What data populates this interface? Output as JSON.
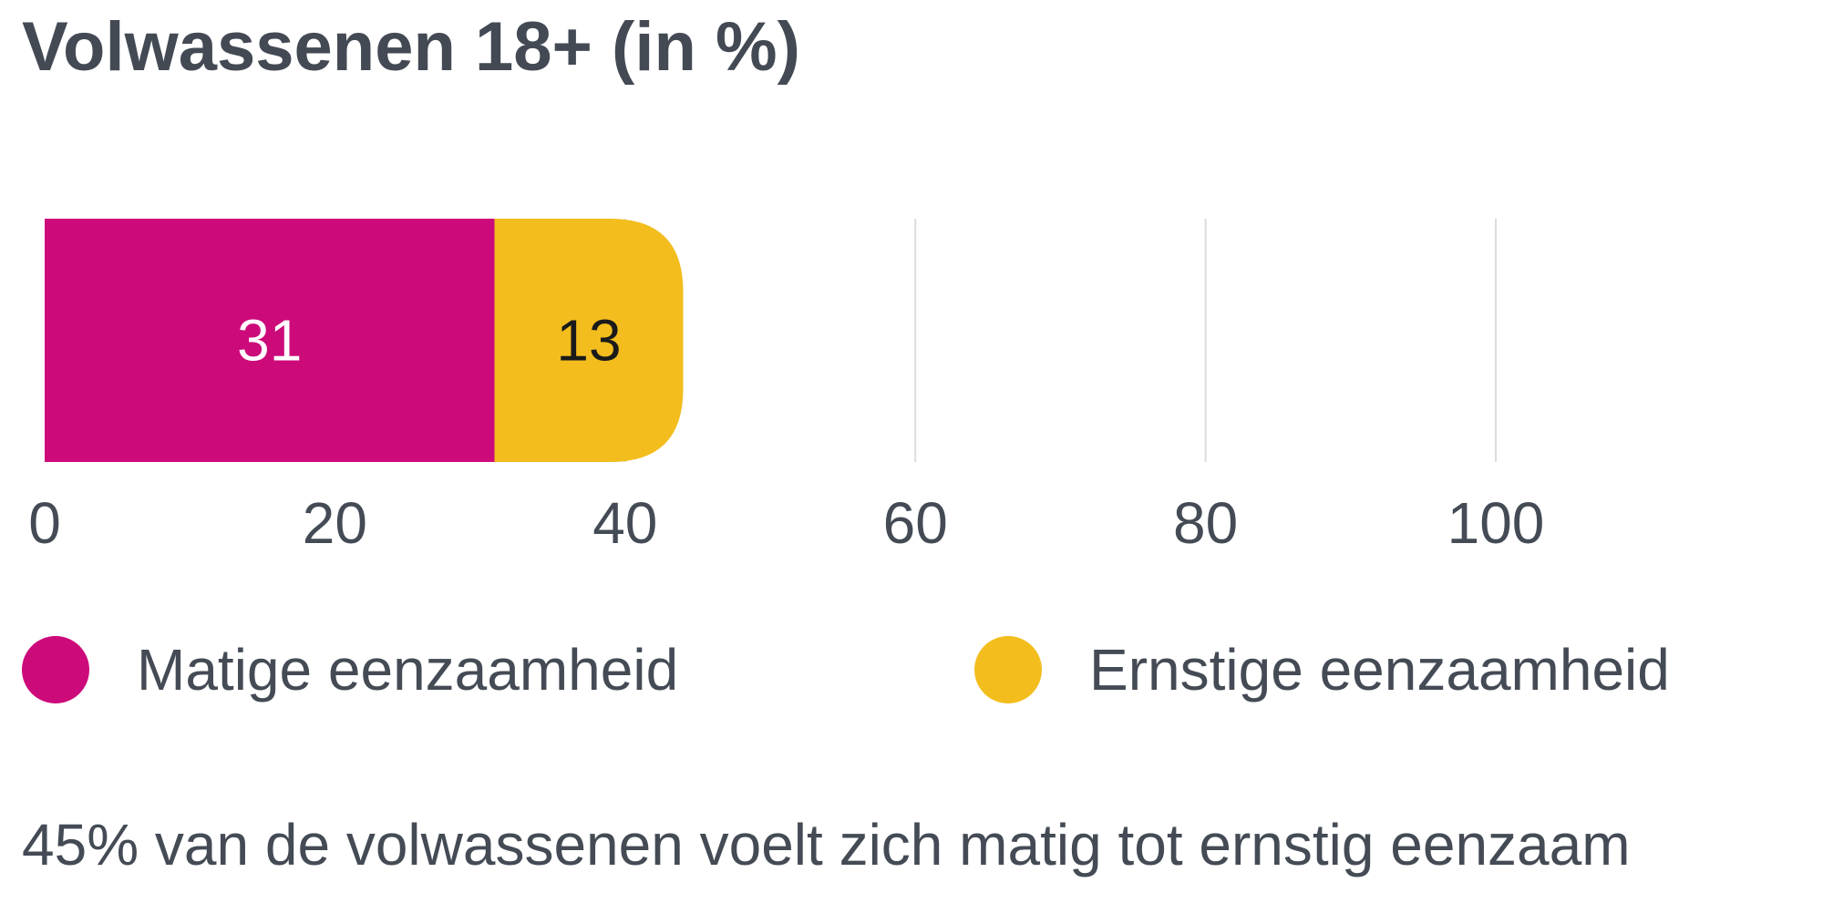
{
  "chart_data": {
    "type": "bar",
    "orientation": "horizontal",
    "stacked": true,
    "title": "Volwassenen 18+ (in %)",
    "categories": [
      "Volwassenen 18+"
    ],
    "series": [
      {
        "name": "Matige eenzaamheid",
        "values": [
          31
        ],
        "color": "#cc0a7a",
        "label_color": "#ffffff"
      },
      {
        "name": "Ernstige eenzaamheid",
        "values": [
          13
        ],
        "color": "#f2bd1d",
        "label_color": "#1a1a1a"
      }
    ],
    "xlim": [
      0,
      100
    ],
    "xticks": [
      0,
      20,
      40,
      60,
      80,
      100
    ],
    "grid": true,
    "legend_position": "bottom"
  },
  "footnote": "45% van de volwassenen voelt zich matig tot ernstig eenzaam"
}
